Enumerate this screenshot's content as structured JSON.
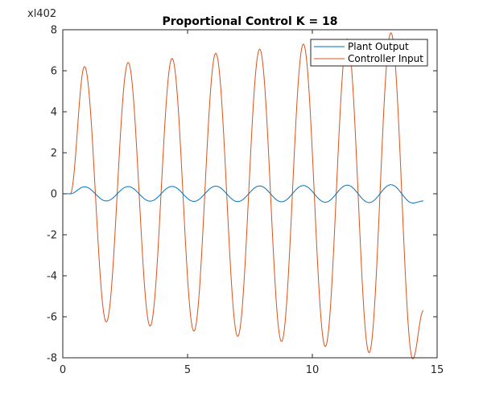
{
  "chart_data": {
    "type": "line",
    "title": "Proportional Control K = 18",
    "corner_label": "xl402",
    "xlabel": "",
    "ylabel": "",
    "xlim": [
      0,
      15
    ],
    "ylim": [
      -8,
      8
    ],
    "x_ticks": [
      0,
      5,
      10,
      15
    ],
    "y_ticks": [
      -8,
      -6,
      -4,
      -2,
      0,
      2,
      4,
      6,
      8
    ],
    "x_tick_labels": [
      "0",
      "5",
      "10",
      "15"
    ],
    "y_tick_labels": [
      "-8",
      "-6",
      "-4",
      "-2",
      "0",
      "2",
      "4",
      "6",
      "8"
    ],
    "grid": false,
    "legend_position": "top-right",
    "oscillation": {
      "start_time": 0.3,
      "end_time": 14.45,
      "peak_times": [
        0.87,
        2.62,
        4.38,
        6.13,
        7.89,
        9.64,
        11.4,
        13.15
      ]
    },
    "series": [
      {
        "name": "Plant Output",
        "color": "#0072bd",
        "peaks": [
          0.34,
          0.35,
          0.36,
          0.37,
          0.38,
          0.4,
          0.42,
          0.44
        ],
        "troughs": [
          -0.35,
          -0.36,
          -0.37,
          -0.38,
          -0.39,
          -0.41,
          -0.43,
          -0.45
        ],
        "end_value": -0.35
      },
      {
        "name": "Controller Input",
        "color": "#d95319",
        "peaks": [
          6.2,
          6.4,
          6.6,
          6.85,
          7.05,
          7.3,
          7.55,
          7.85
        ],
        "troughs": [
          -6.25,
          -6.45,
          -6.7,
          -6.95,
          -7.2,
          -7.45,
          -7.75,
          -8.05
        ],
        "end_value": -5.7
      }
    ]
  }
}
